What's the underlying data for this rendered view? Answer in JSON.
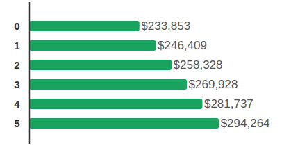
{
  "chart_data": {
    "type": "bar",
    "orientation": "horizontal",
    "categories": [
      "0",
      "1",
      "2",
      "3",
      "4",
      "5"
    ],
    "values": [
      233853,
      246409,
      258328,
      269928,
      281737,
      294264
    ],
    "value_labels": [
      "$233,853",
      "$246,409",
      "$258,328",
      "$269,928",
      "$281,737",
      "$294,264"
    ],
    "color": "#1aa35f",
    "xlim": [
      150000,
      300000
    ],
    "data_labels": true,
    "tick_labels": "y"
  }
}
